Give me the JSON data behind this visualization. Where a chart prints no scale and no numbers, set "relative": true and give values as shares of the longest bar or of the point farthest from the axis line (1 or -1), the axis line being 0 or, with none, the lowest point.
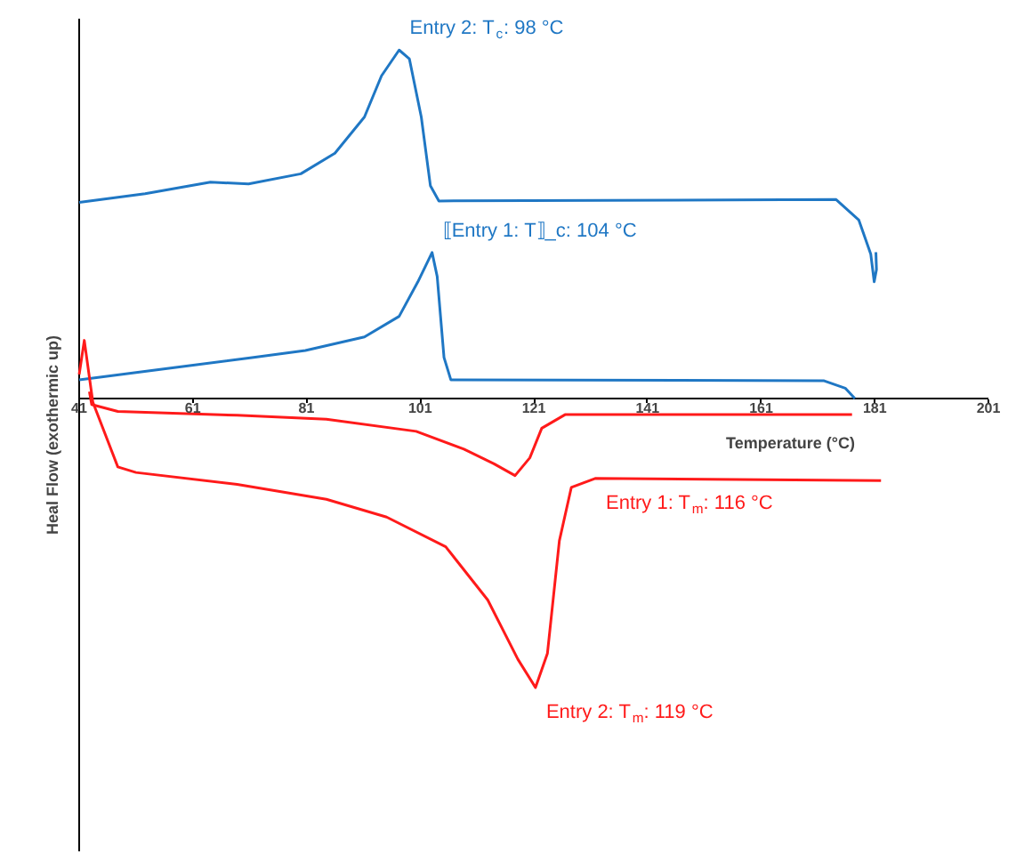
{
  "chart_data": {
    "type": "line",
    "xlabel": "Temperature (°C)",
    "ylabel": "Heal Flow (exothermic up)",
    "relative": true,
    "xlim": [
      41,
      201
    ],
    "xticks": [
      41,
      61,
      81,
      101,
      121,
      141,
      161,
      181,
      201
    ],
    "grid": false,
    "line_style": "solid",
    "series": [
      {
        "color": "#1f77c4",
        "x": [
          41,
          52.6,
          64.1,
          70.8,
          80,
          86,
          91.2,
          94.2,
          97.3,
          99.1,
          101.2,
          102.8,
          104.3,
          174.2,
          178.2,
          180.3,
          180.9,
          181.3,
          181.2
        ],
        "values": [
          0.563,
          0.588,
          0.621,
          0.616,
          0.645,
          0.704,
          0.808,
          0.926,
          1.0,
          0.975,
          0.808,
          0.611,
          0.567,
          0.571,
          0.512,
          0.414,
          0.335,
          0.37,
          0.42
        ]
      },
      {
        "color": "#1f77c4",
        "x": [
          41,
          57.7,
          71.7,
          80.8,
          91.2,
          97.3,
          100.6,
          103.1,
          104,
          105.2,
          106.4,
          172.1,
          175.8,
          177.5
        ],
        "values": [
          0.054,
          0.089,
          0.118,
          0.138,
          0.177,
          0.236,
          0.335,
          0.419,
          0.35,
          0.118,
          0.054,
          0.051,
          0.03,
          0.0
        ]
      },
      {
        "color": "#ff1a1a",
        "x": [
          42.8,
          43.2,
          47.8,
          68.8,
          84.5,
          100.3,
          108.7,
          114,
          117.7,
          120.3,
          122.4,
          126.5,
          177
        ],
        "values": [
          0.02,
          -0.017,
          -0.037,
          -0.048,
          -0.059,
          -0.094,
          -0.145,
          -0.187,
          -0.221,
          -0.17,
          -0.085,
          -0.046,
          -0.046
        ]
      },
      {
        "color": "#ff1a1a",
        "x": [
          41,
          41.9,
          43.4,
          47.8,
          51,
          68.8,
          84.5,
          95.1,
          105.5,
          112.9,
          118.2,
          121.3,
          123.4,
          125.5,
          127.6,
          131.8,
          182.1
        ],
        "values": [
          0.069,
          0.167,
          -0.01,
          -0.196,
          -0.212,
          -0.246,
          -0.289,
          -0.34,
          -0.425,
          -0.578,
          -0.748,
          -0.829,
          -0.731,
          -0.408,
          -0.255,
          -0.229,
          -0.235
        ]
      }
    ],
    "annotations": [
      {
        "text": "Entry 2: T$_{c}$: 98 °C",
        "x": 97.3,
        "y": 1.0
      },
      {
        "text": "⟦Entry 1: T⟧_c: 104 °C",
        "x": 103.1,
        "y": 0.419
      },
      {
        "text": "Entry 1: T$_{m}$: 116 °C",
        "x": 131.8,
        "y": -0.229
      },
      {
        "text": "Entry 2: T$_{m}$: 119 °C",
        "x": 121.3,
        "y": -0.829
      }
    ]
  }
}
